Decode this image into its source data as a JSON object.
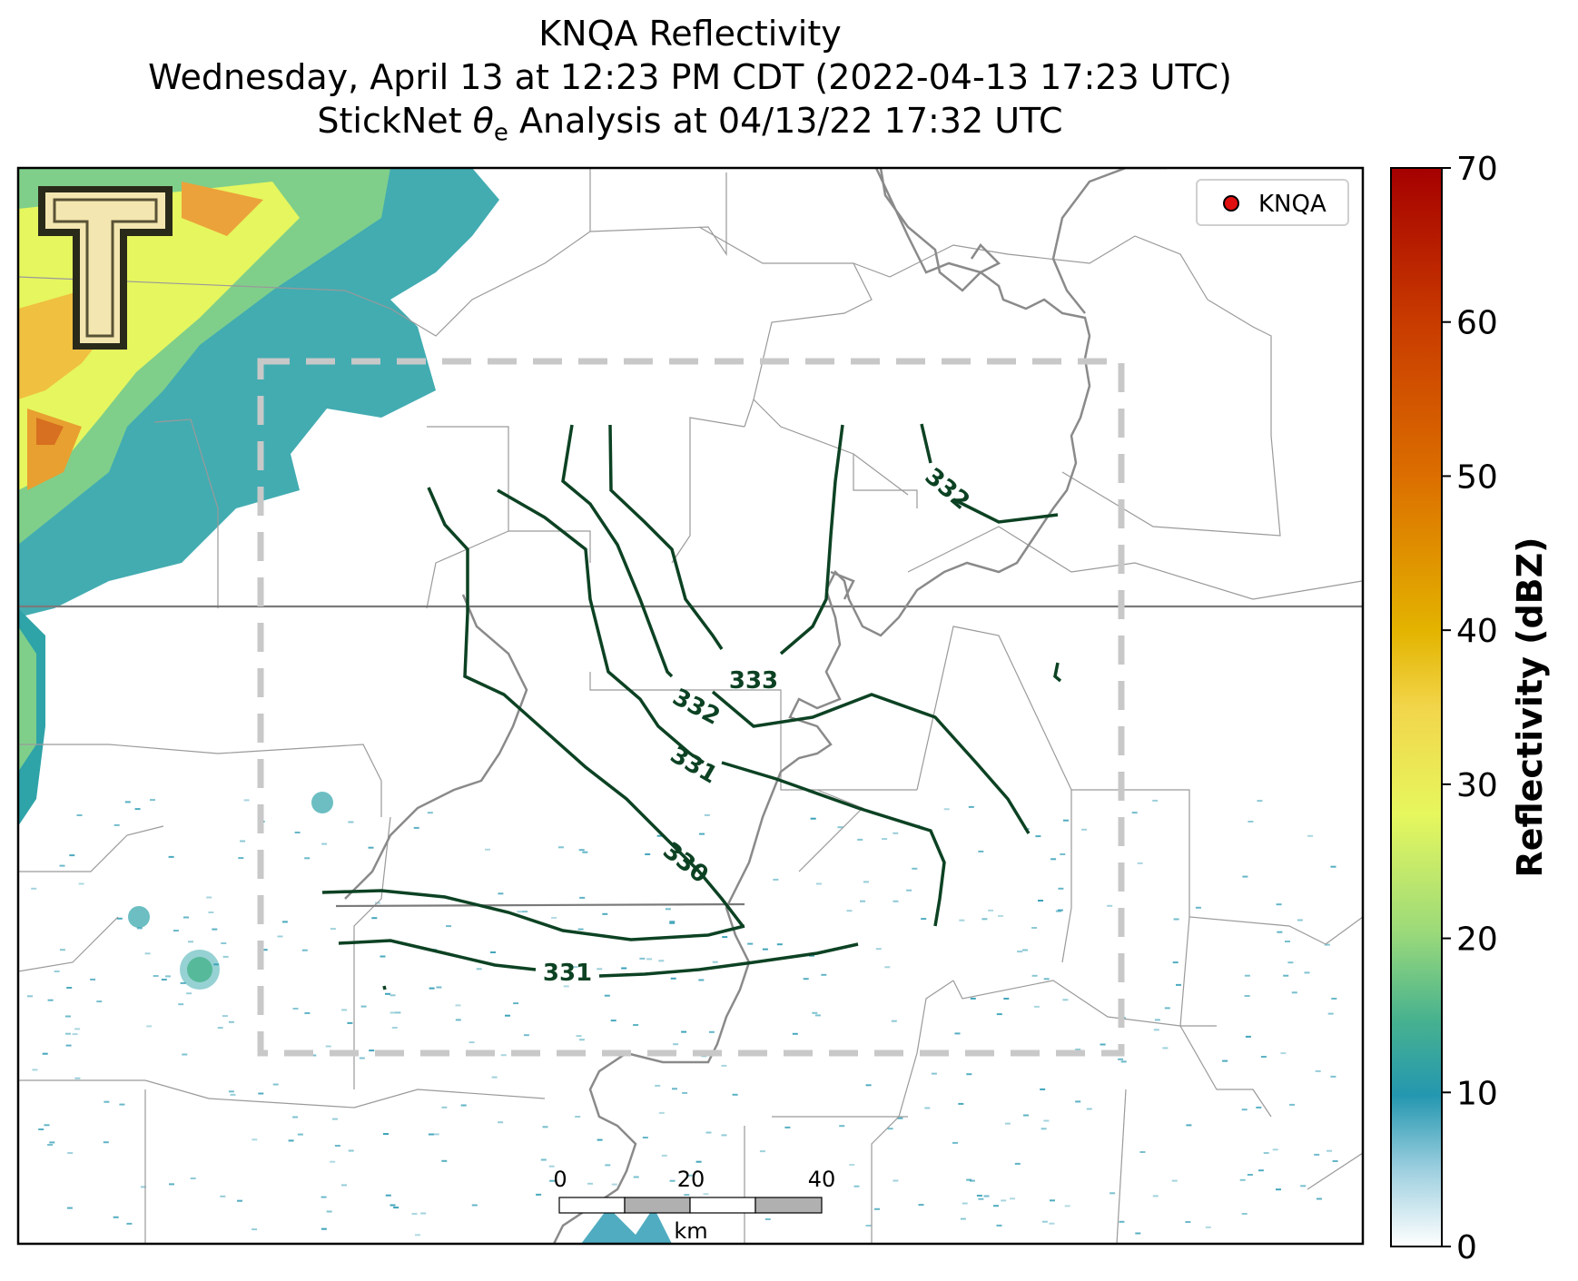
{
  "titles": {
    "line1": "KNQA Reflectivity",
    "line2": "Wednesday, April 13 at 12:23 PM CDT (2022-04-13 17:23 UTC)",
    "line3_prefix": "StickNet ",
    "line3_symbol": "θ",
    "line3_sub": "e",
    "line3_suffix": " Analysis at 04/13/22 17:32 UTC"
  },
  "legend": {
    "marker_color": "#e01010",
    "label": "KNQA"
  },
  "logo": {
    "letter": "T",
    "colors": {
      "fill": "#f3e6b0",
      "stroke": "#2a2a1a"
    }
  },
  "contours": {
    "color": "#0c4223",
    "labels": [
      "333",
      "332",
      "332",
      "331",
      "330",
      "331"
    ]
  },
  "scalebar": {
    "ticks": [
      "0",
      "20",
      "40"
    ],
    "unit": "km"
  },
  "colorbar": {
    "label": "Reflectivity (dBZ)",
    "ticks": [
      "0",
      "10",
      "20",
      "30",
      "40",
      "50",
      "60",
      "70"
    ],
    "range": [
      0,
      70
    ]
  },
  "colors": {
    "analysis_box": "#c8c8c8",
    "river": "#8a8a8a",
    "boundaries": "#9a9a9a"
  }
}
